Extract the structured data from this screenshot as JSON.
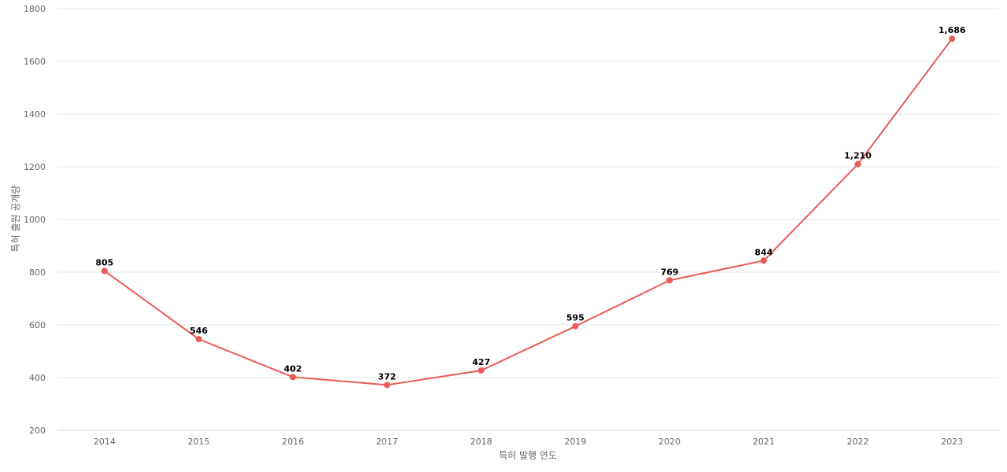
{
  "chart_data": {
    "type": "line",
    "title": "",
    "xlabel": "특허 발행 연도",
    "ylabel": "특허 출원 공개량",
    "categories": [
      "2014",
      "2015",
      "2016",
      "2017",
      "2018",
      "2019",
      "2020",
      "2021",
      "2022",
      "2023"
    ],
    "series": [
      {
        "values": [
          805,
          546,
          402,
          372,
          427,
          595,
          769,
          844,
          1210,
          1686
        ],
        "labels": [
          "805",
          "546",
          "402",
          "372",
          "427",
          "595",
          "769",
          "844",
          "1,210",
          "1,686"
        ],
        "color": "#eb5a57"
      }
    ],
    "ylim": [
      200,
      1800
    ],
    "yticks": [
      "200",
      "400",
      "600",
      "800",
      "1000",
      "1200",
      "1400",
      "1600",
      "1800"
    ],
    "grid": true,
    "legend": "none"
  }
}
